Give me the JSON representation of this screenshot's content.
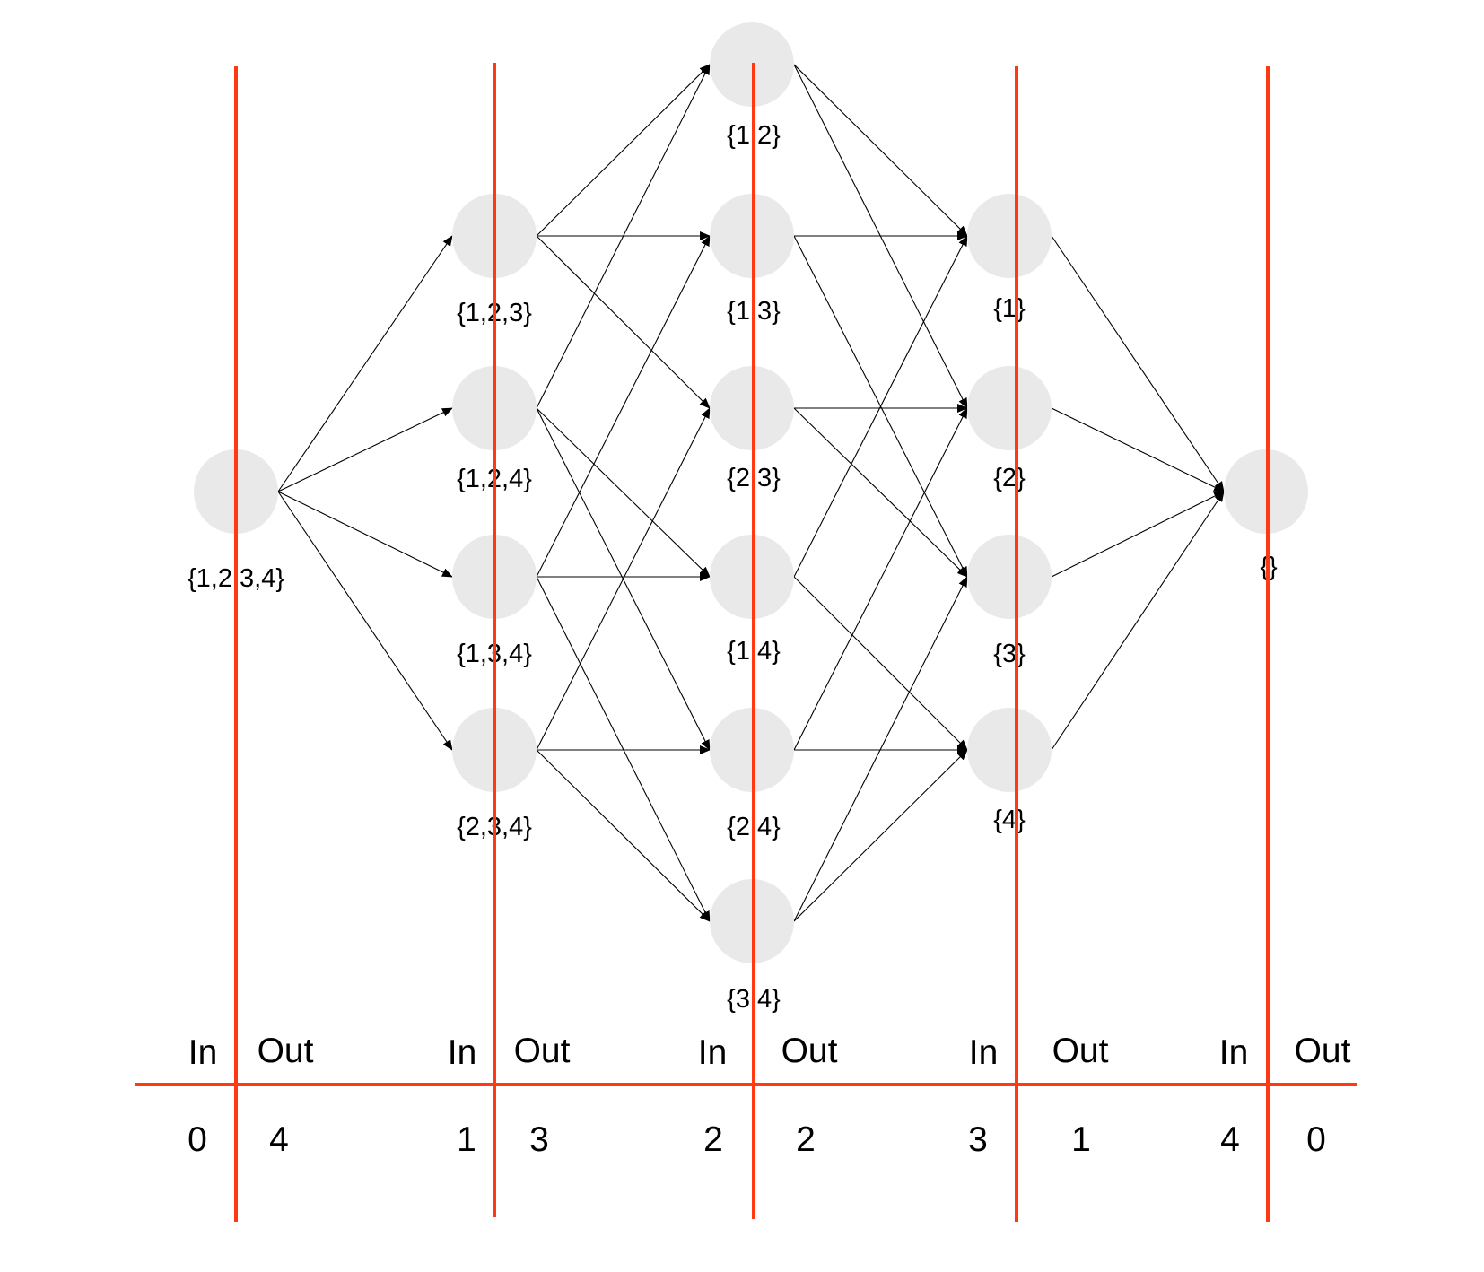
{
  "diagram": {
    "nodes": [
      {
        "id": "n1234",
        "label": "{1,2 3,4}"
      },
      {
        "id": "n123",
        "label": "{1,2,3}"
      },
      {
        "id": "n124",
        "label": "{1,2,4}"
      },
      {
        "id": "n134",
        "label": "{1,3,4}"
      },
      {
        "id": "n234",
        "label": "{2,3,4}"
      },
      {
        "id": "n12",
        "label": "{1 2}"
      },
      {
        "id": "n13",
        "label": "{1 3}"
      },
      {
        "id": "n23",
        "label": "{2 3}"
      },
      {
        "id": "n14",
        "label": "{1 4}"
      },
      {
        "id": "n24",
        "label": "{2,4}"
      },
      {
        "id": "n34",
        "label": "{3 4}"
      },
      {
        "id": "n1",
        "label": "{1}"
      },
      {
        "id": "n2",
        "label": "{2}"
      },
      {
        "id": "n3",
        "label": "{3}"
      },
      {
        "id": "n4",
        "label": "{4}"
      },
      {
        "id": "n0",
        "label": "{}"
      }
    ],
    "edges": [
      [
        "n1234",
        "n123"
      ],
      [
        "n1234",
        "n124"
      ],
      [
        "n1234",
        "n134"
      ],
      [
        "n1234",
        "n234"
      ],
      [
        "n123",
        "n12"
      ],
      [
        "n123",
        "n13"
      ],
      [
        "n123",
        "n23"
      ],
      [
        "n124",
        "n12"
      ],
      [
        "n124",
        "n14"
      ],
      [
        "n124",
        "n24"
      ],
      [
        "n134",
        "n13"
      ],
      [
        "n134",
        "n14"
      ],
      [
        "n134",
        "n34"
      ],
      [
        "n234",
        "n23"
      ],
      [
        "n234",
        "n24"
      ],
      [
        "n234",
        "n34"
      ],
      [
        "n12",
        "n1"
      ],
      [
        "n12",
        "n2"
      ],
      [
        "n13",
        "n1"
      ],
      [
        "n13",
        "n3"
      ],
      [
        "n23",
        "n2"
      ],
      [
        "n23",
        "n3"
      ],
      [
        "n14",
        "n1"
      ],
      [
        "n14",
        "n4"
      ],
      [
        "n24",
        "n2"
      ],
      [
        "n24",
        "n4"
      ],
      [
        "n34",
        "n3"
      ],
      [
        "n34",
        "n4"
      ],
      [
        "n1",
        "n0"
      ],
      [
        "n2",
        "n0"
      ],
      [
        "n3",
        "n0"
      ],
      [
        "n4",
        "n0"
      ]
    ]
  },
  "table": {
    "columns": [
      {
        "in_label": "In",
        "out_label": "Out",
        "in_value": "0",
        "out_value": "4"
      },
      {
        "in_label": "In",
        "out_label": "Out",
        "in_value": "1",
        "out_value": "3"
      },
      {
        "in_label": "In",
        "out_label": "Out",
        "in_value": "2",
        "out_value": "2"
      },
      {
        "in_label": "In",
        "out_label": "Out",
        "in_value": "3",
        "out_value": "1"
      },
      {
        "in_label": "In",
        "out_label": "Out",
        "in_value": "4",
        "out_value": "0"
      }
    ]
  },
  "colors": {
    "divider": "#ff3a12",
    "node_fill": "#e9e9e9",
    "edge": "#000000"
  }
}
